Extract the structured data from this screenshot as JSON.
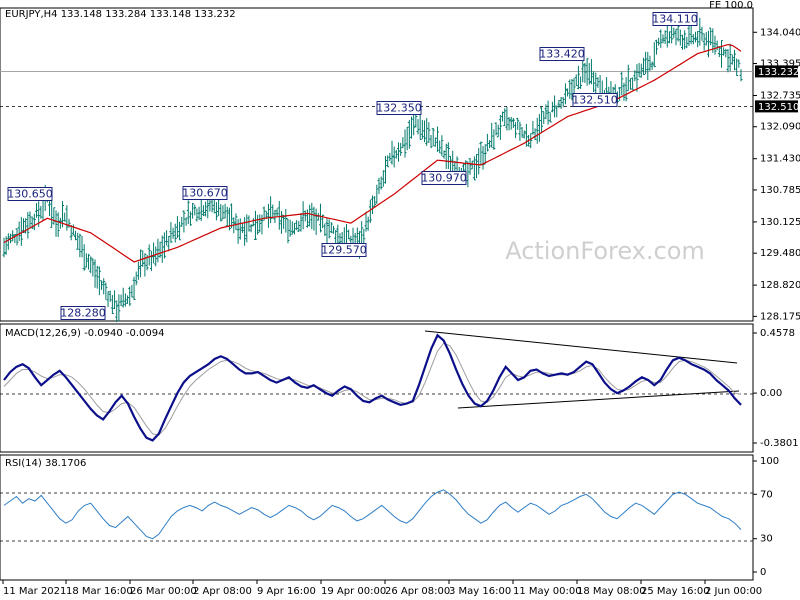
{
  "header": {
    "title": "EURJPY,H4  133.148 133.284 133.148 133.232",
    "fe_label": "FE 100.0",
    "watermark": "ActionForex.com"
  },
  "colors": {
    "background": "#ffffff",
    "axis": "#000000",
    "bar": "#00796b",
    "ma": "#cc0000",
    "macd": "#0b0f8a",
    "signal": "#9e9e9e",
    "rsi": "#2f7ec7",
    "annotation_border": "#1a237e",
    "annotation_text": "#1a237e",
    "level_line": "#000000",
    "watermark": "#cfcfcf"
  },
  "chart_data": [
    {
      "type": "candlestick",
      "title": "EURJPY,H4",
      "series_name": "EURJPY H4 bars",
      "ohlc_header": {
        "open": 133.148,
        "high": 133.284,
        "low": 133.148,
        "close": 133.232
      },
      "ylim": [
        128.1,
        134.5
      ],
      "y_ticks": [
        "134.040",
        "133.395",
        "132.735",
        "132.090",
        "131.430",
        "130.785",
        "130.125",
        "129.480",
        "128.820",
        "128.175"
      ],
      "x_tick_labels": [
        "11 Mar 2021",
        "18 Mar 16:00",
        "26 Mar 00:00",
        "2 Apr 08:00",
        "9 Apr 16:00",
        "19 Apr 00:00",
        "26 Apr 08:00",
        "3 May 16:00",
        "11 May 00:00",
        "18 May 08:00",
        "25 May 16:00",
        "2 Jun 00:00"
      ],
      "current_price": {
        "label": "133.232",
        "value": 133.232
      },
      "level_line": {
        "label": "132.510",
        "value": 132.51,
        "style": "dashed"
      },
      "annotations": [
        {
          "label": "130.650",
          "value": 130.65
        },
        {
          "label": "128.280",
          "value": 128.28
        },
        {
          "label": "130.670",
          "value": 130.67
        },
        {
          "label": "129.570",
          "value": 129.57
        },
        {
          "label": "132.350",
          "value": 132.35
        },
        {
          "label": "130.970",
          "value": 130.97
        },
        {
          "label": "133.420",
          "value": 133.42
        },
        {
          "label": "132.510",
          "value": 132.51
        },
        {
          "label": "134.110",
          "value": 134.11
        }
      ],
      "anchors": [
        [
          0,
          129.6
        ],
        [
          8,
          130.0
        ],
        [
          16,
          130.3
        ],
        [
          20,
          130.6
        ],
        [
          24,
          130.1
        ],
        [
          28,
          130.3
        ],
        [
          32,
          129.9
        ],
        [
          38,
          129.4
        ],
        [
          44,
          128.9
        ],
        [
          52,
          128.35
        ],
        [
          58,
          128.6
        ],
        [
          64,
          129.3
        ],
        [
          70,
          129.4
        ],
        [
          78,
          129.9
        ],
        [
          86,
          130.3
        ],
        [
          94,
          130.5
        ],
        [
          100,
          130.4
        ],
        [
          108,
          130.0
        ],
        [
          116,
          130.1
        ],
        [
          124,
          130.3
        ],
        [
          132,
          130.0
        ],
        [
          140,
          130.25
        ],
        [
          148,
          130.05
        ],
        [
          156,
          129.8
        ],
        [
          164,
          129.7
        ],
        [
          170,
          130.4
        ],
        [
          178,
          131.4
        ],
        [
          186,
          131.85
        ],
        [
          190,
          132.2
        ],
        [
          196,
          131.9
        ],
        [
          200,
          131.75
        ],
        [
          206,
          131.35
        ],
        [
          214,
          131.1
        ],
        [
          222,
          131.6
        ],
        [
          230,
          132.2
        ],
        [
          236,
          132.1
        ],
        [
          242,
          131.85
        ],
        [
          250,
          132.3
        ],
        [
          258,
          132.6
        ],
        [
          264,
          133.0
        ],
        [
          270,
          133.25
        ],
        [
          276,
          132.85
        ],
        [
          282,
          132.75
        ],
        [
          288,
          133.0
        ],
        [
          294,
          133.25
        ],
        [
          300,
          133.5
        ],
        [
          304,
          134.0
        ],
        [
          310,
          133.95
        ],
        [
          316,
          133.9
        ],
        [
          322,
          133.95
        ],
        [
          328,
          133.8
        ],
        [
          334,
          133.55
        ],
        [
          340,
          133.232
        ]
      ],
      "ma_anchors": [
        [
          0,
          129.7
        ],
        [
          20,
          130.2
        ],
        [
          40,
          129.9
        ],
        [
          60,
          129.3
        ],
        [
          80,
          129.6
        ],
        [
          100,
          130.0
        ],
        [
          120,
          130.2
        ],
        [
          140,
          130.3
        ],
        [
          160,
          130.1
        ],
        [
          180,
          130.7
        ],
        [
          200,
          131.4
        ],
        [
          220,
          131.3
        ],
        [
          240,
          131.75
        ],
        [
          260,
          132.3
        ],
        [
          280,
          132.6
        ],
        [
          300,
          133.05
        ],
        [
          320,
          133.6
        ],
        [
          335,
          133.8
        ],
        [
          340,
          133.65
        ]
      ]
    },
    {
      "type": "line",
      "title": "MACD(12,26,9) -0.0940 -0.0094",
      "ylim": [
        -0.3801,
        0.4578
      ],
      "y_ticks": [
        "0.4578",
        "0.00",
        "-0.3801"
      ],
      "series": [
        {
          "name": "MACD",
          "values": [
            0.1,
            0.16,
            0.2,
            0.22,
            0.19,
            0.12,
            0.06,
            0.1,
            0.14,
            0.17,
            0.12,
            0.06,
            0.0,
            -0.06,
            -0.12,
            -0.17,
            -0.2,
            -0.14,
            -0.07,
            -0.02,
            -0.08,
            -0.18,
            -0.27,
            -0.34,
            -0.36,
            -0.31,
            -0.2,
            -0.1,
            0.0,
            0.08,
            0.13,
            0.16,
            0.19,
            0.22,
            0.26,
            0.28,
            0.26,
            0.22,
            0.18,
            0.15,
            0.15,
            0.16,
            0.13,
            0.1,
            0.08,
            0.1,
            0.12,
            0.08,
            0.05,
            0.04,
            0.06,
            0.03,
            0.0,
            -0.02,
            0.02,
            0.05,
            0.03,
            -0.02,
            -0.06,
            -0.07,
            -0.04,
            -0.02,
            -0.05,
            -0.07,
            -0.09,
            -0.08,
            -0.06,
            0.06,
            0.2,
            0.34,
            0.44,
            0.4,
            0.3,
            0.18,
            0.07,
            -0.02,
            -0.08,
            -0.1,
            -0.06,
            0.02,
            0.12,
            0.2,
            0.15,
            0.1,
            0.12,
            0.17,
            0.18,
            0.15,
            0.13,
            0.14,
            0.15,
            0.14,
            0.16,
            0.2,
            0.24,
            0.22,
            0.15,
            0.08,
            0.03,
            0.0,
            0.02,
            0.05,
            0.09,
            0.12,
            0.1,
            0.06,
            0.1,
            0.18,
            0.25,
            0.27,
            0.25,
            0.22,
            0.2,
            0.18,
            0.15,
            0.1,
            0.06,
            0.02,
            -0.04,
            -0.09
          ]
        },
        {
          "name": "Signal",
          "values": [
            0.05,
            0.1,
            0.15,
            0.18,
            0.18,
            0.16,
            0.13,
            0.11,
            0.12,
            0.14,
            0.14,
            0.12,
            0.08,
            0.03,
            -0.03,
            -0.09,
            -0.14,
            -0.15,
            -0.12,
            -0.08,
            -0.07,
            -0.11,
            -0.18,
            -0.25,
            -0.31,
            -0.32,
            -0.27,
            -0.19,
            -0.1,
            -0.02,
            0.05,
            0.1,
            0.14,
            0.18,
            0.21,
            0.24,
            0.25,
            0.24,
            0.22,
            0.19,
            0.17,
            0.16,
            0.15,
            0.13,
            0.11,
            0.1,
            0.11,
            0.1,
            0.08,
            0.06,
            0.05,
            0.04,
            0.02,
            0.0,
            0.0,
            0.02,
            0.03,
            0.01,
            -0.02,
            -0.05,
            -0.05,
            -0.04,
            -0.04,
            -0.05,
            -0.07,
            -0.08,
            -0.07,
            -0.02,
            0.08,
            0.2,
            0.32,
            0.38,
            0.36,
            0.29,
            0.19,
            0.09,
            0.0,
            -0.06,
            -0.07,
            -0.03,
            0.04,
            0.12,
            0.15,
            0.13,
            0.12,
            0.14,
            0.16,
            0.16,
            0.15,
            0.14,
            0.14,
            0.14,
            0.15,
            0.17,
            0.2,
            0.21,
            0.18,
            0.12,
            0.07,
            0.03,
            0.02,
            0.03,
            0.06,
            0.09,
            0.1,
            0.08,
            0.08,
            0.13,
            0.19,
            0.24,
            0.25,
            0.24,
            0.22,
            0.2,
            0.17,
            0.13,
            0.09,
            0.05,
            0.0,
            -0.01
          ]
        }
      ]
    },
    {
      "type": "line",
      "title": "RSI(14) 38.1706",
      "ylim": [
        0,
        100
      ],
      "y_ticks": [
        "100",
        "70",
        "30",
        "0"
      ],
      "levels": [
        70,
        30
      ],
      "series": [
        {
          "name": "RSI(14)",
          "values": [
            60,
            64,
            68,
            62,
            66,
            64,
            69,
            62,
            55,
            48,
            44,
            47,
            55,
            60,
            62,
            55,
            48,
            42,
            40,
            45,
            50,
            44,
            38,
            32,
            30,
            34,
            42,
            50,
            55,
            58,
            60,
            58,
            55,
            60,
            63,
            60,
            58,
            55,
            52,
            55,
            58,
            56,
            52,
            49,
            52,
            56,
            60,
            58,
            55,
            50,
            47,
            50,
            55,
            60,
            58,
            55,
            50,
            46,
            48,
            52,
            56,
            60,
            55,
            50,
            46,
            44,
            48,
            55,
            62,
            68,
            72,
            74,
            70,
            65,
            58,
            52,
            48,
            44,
            47,
            54,
            60,
            63,
            58,
            54,
            58,
            62,
            60,
            56,
            52,
            55,
            60,
            62,
            65,
            68,
            70,
            66,
            60,
            54,
            50,
            48,
            53,
            58,
            62,
            60,
            56,
            52,
            58,
            64,
            70,
            72,
            70,
            66,
            62,
            60,
            58,
            54,
            50,
            48,
            44,
            38.17
          ]
        }
      ]
    }
  ]
}
